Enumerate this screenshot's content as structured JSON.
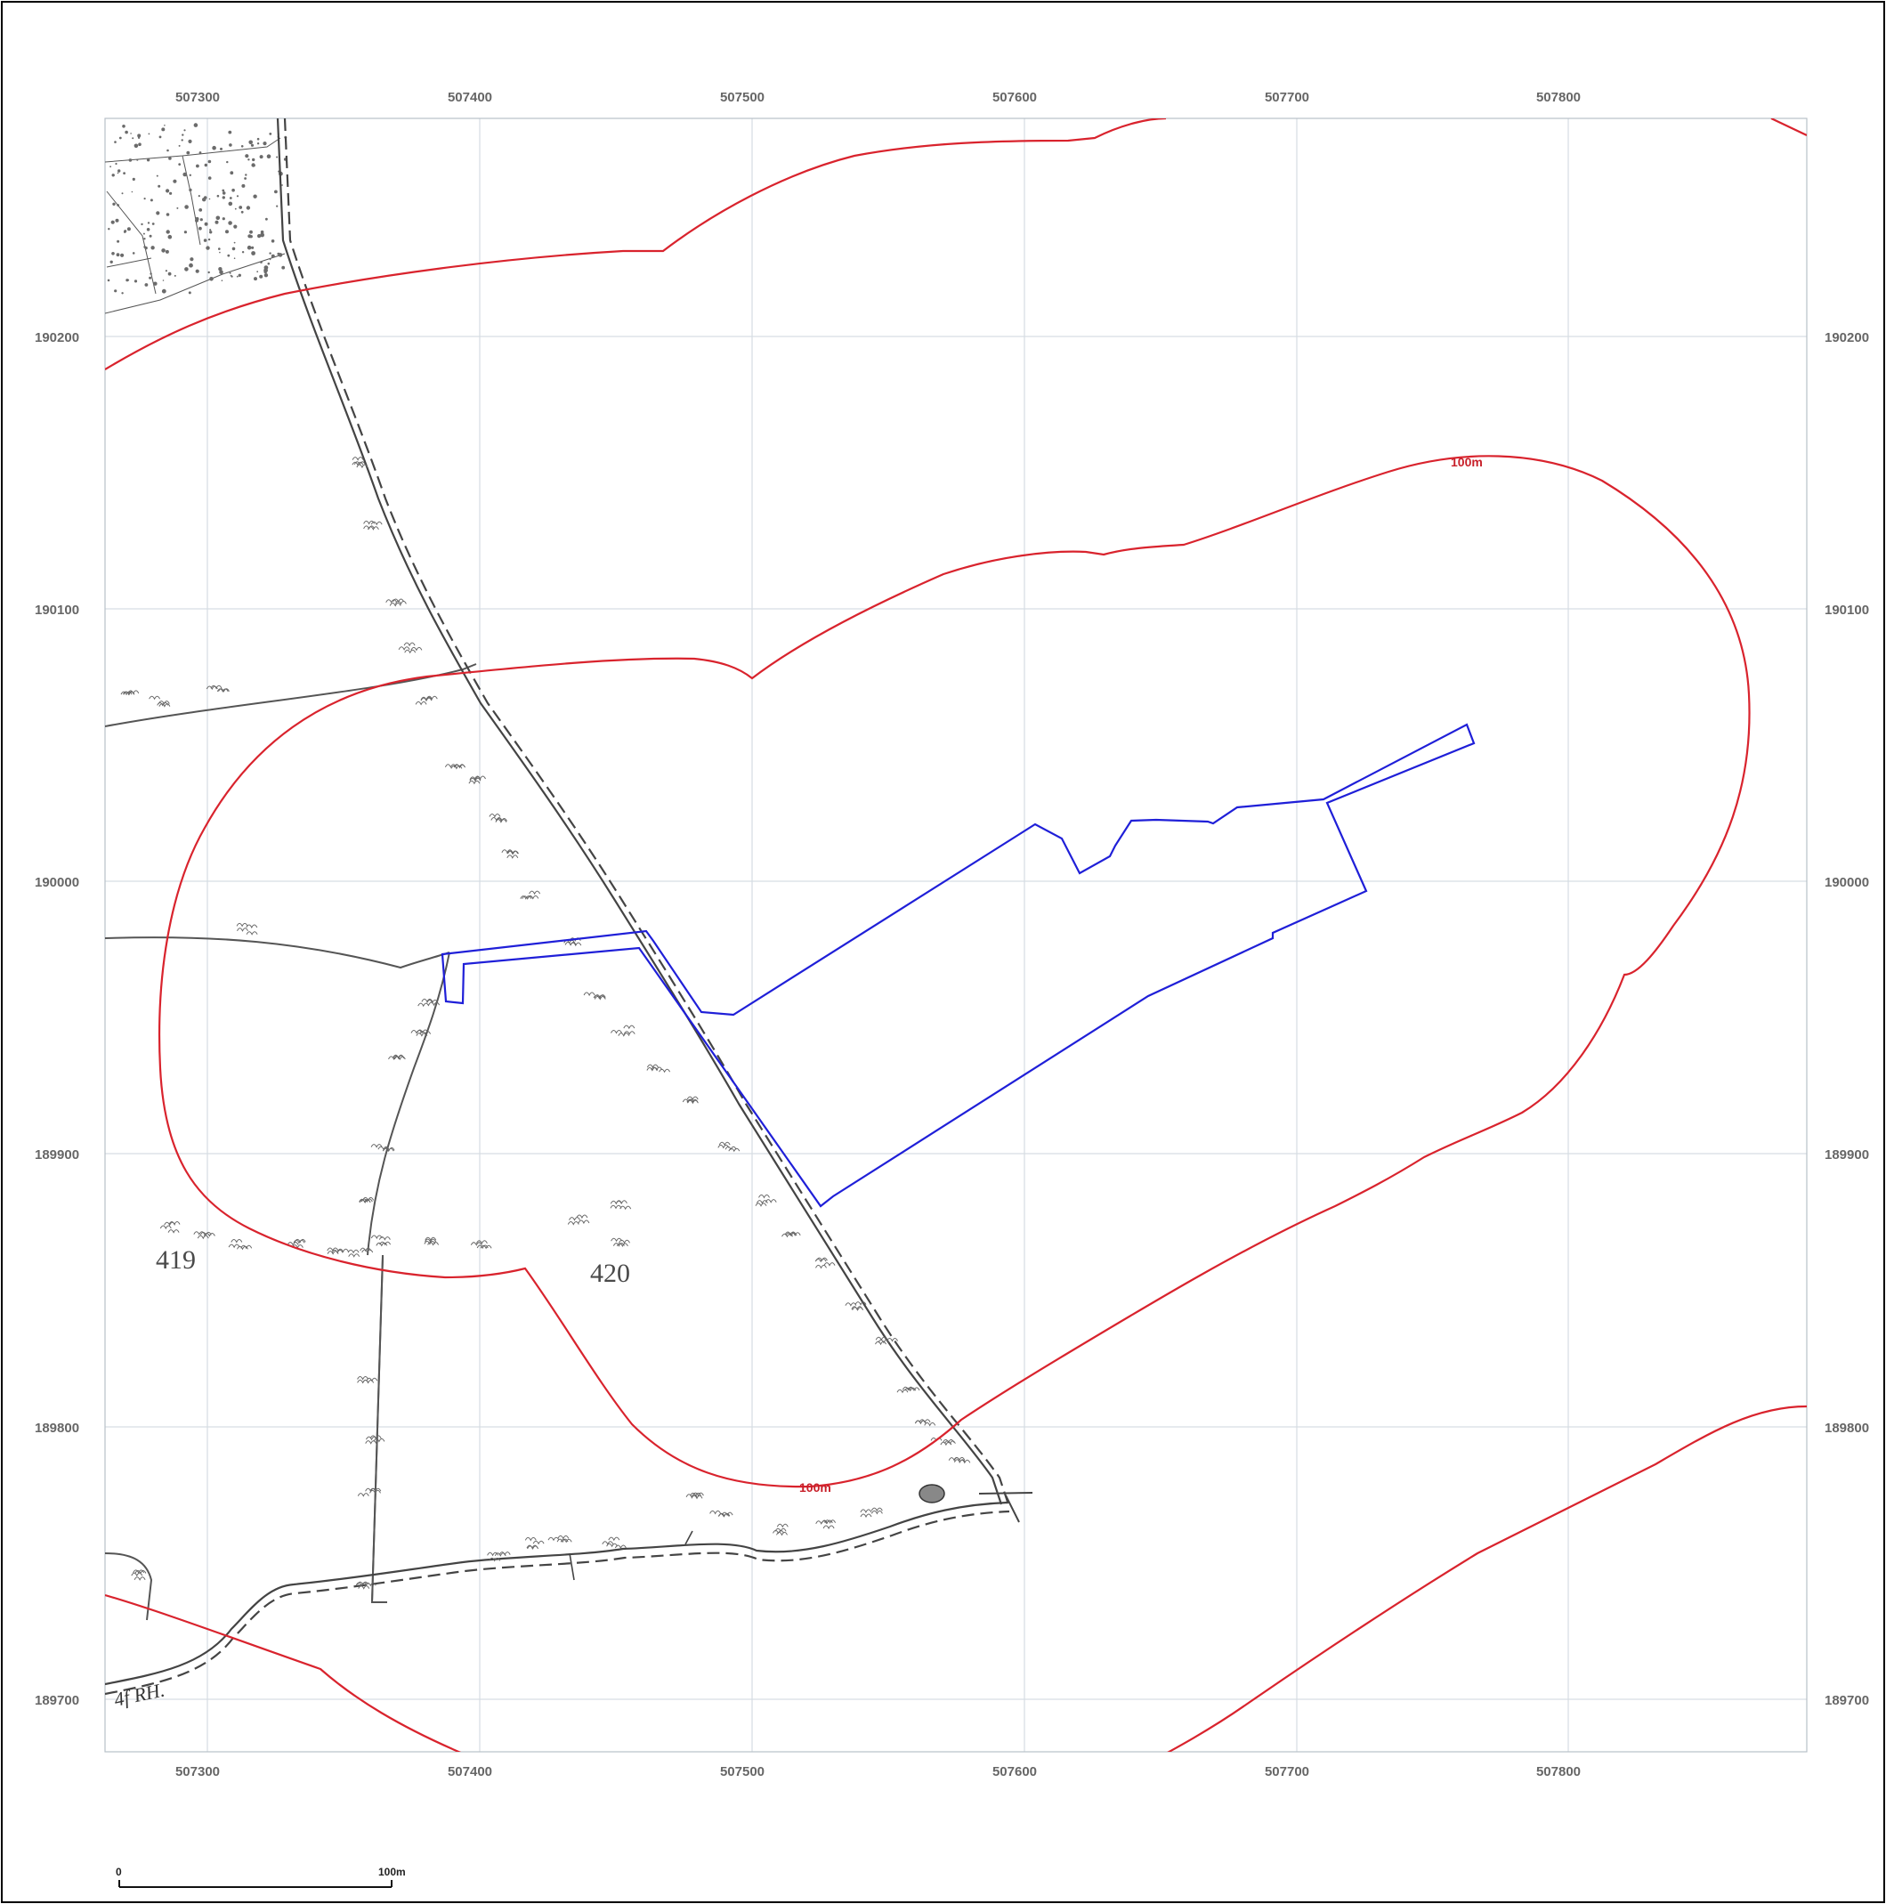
{
  "map": {
    "grid": {
      "eastings": [
        "507300",
        "507400",
        "507500",
        "507600",
        "507700",
        "507800"
      ],
      "northings": [
        "190200",
        "190100",
        "190000",
        "189900",
        "189800",
        "189700"
      ]
    },
    "parcels": [
      "419",
      "420"
    ],
    "buffer_labels": [
      "100m",
      "100m"
    ],
    "road_annotation": "4f RH.",
    "scale_bar": {
      "start": "0",
      "end": "100m"
    },
    "colors": {
      "buffer": "#d9232d",
      "site_boundary": "#1f1fd8",
      "basemap": "#444444",
      "grid": "#d6dde3"
    }
  }
}
